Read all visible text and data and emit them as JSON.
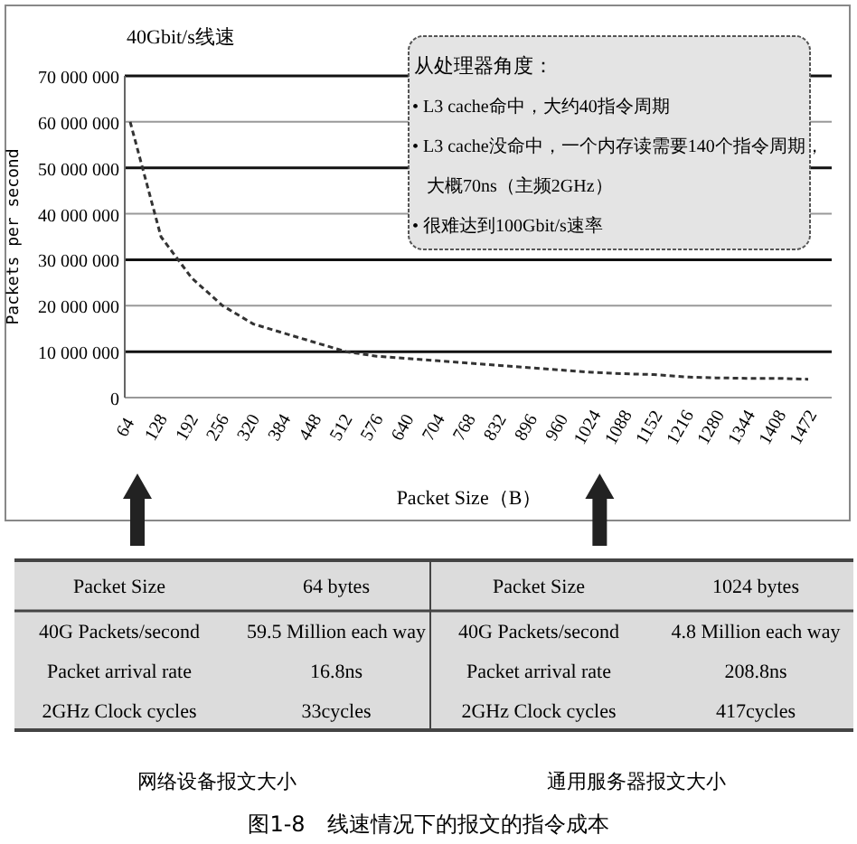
{
  "chart_data": {
    "type": "line",
    "title": "40Gbit/s线速",
    "xlabel": "Packet Size（B）",
    "ylabel": "Packets per second",
    "categories": [
      "64",
      "128",
      "192",
      "256",
      "320",
      "384",
      "448",
      "512",
      "576",
      "640",
      "704",
      "768",
      "832",
      "896",
      "960",
      "1024",
      "1088",
      "1152",
      "1216",
      "1280",
      "1344",
      "1408",
      "1472"
    ],
    "series": [
      {
        "color": "#333333",
        "values": [
          60000000,
          35000000,
          26000000,
          20000000,
          16000000,
          14000000,
          12000000,
          10000000,
          9000000,
          8500000,
          8000000,
          7500000,
          7000000,
          6500000,
          6000000,
          5500000,
          5200000,
          5000000,
          4500000,
          4300000,
          4200000,
          4200000,
          4000000
        ]
      }
    ],
    "line_style": "dashed",
    "marker": "none",
    "grid": "y",
    "ylim": [
      0,
      70000000
    ],
    "yticks": [
      {
        "value": 0,
        "label": "0"
      },
      {
        "value": 10000000,
        "label": "10 000 000"
      },
      {
        "value": 20000000,
        "label": "20 000 000"
      },
      {
        "value": 30000000,
        "label": "30 000 000"
      },
      {
        "value": 40000000,
        "label": "40 000 000"
      },
      {
        "value": 50000000,
        "label": "50 000 000"
      },
      {
        "value": 60000000,
        "label": "60 000 000"
      },
      {
        "value": 70000000,
        "label": "70 000 000"
      }
    ],
    "annotations": [
      "从处理器角度：",
      "• L3 cache命中，大约40指令周期",
      "• L3 cache没命中，一个内存读需要140个指令周期，",
      "大概70ns（主频2GHz）",
      "• 很难达到100Gbit/s速率",
      "Packet Size",
      "64 bytes",
      "40G Packets/second",
      "59.5 Million each way",
      "Packet arrival rate",
      "16.8ns",
      "2GHz Clock cycles",
      "33cycles",
      "Packet Size",
      "1024 bytes",
      "40G Packets/second",
      "4.8 Million each way",
      "Packet arrival rate",
      "208.8ns",
      "2GHz Clock cycles",
      "417cycles",
      "网络设备报文大小",
      "通用服务器报文大小",
      "图1-8　线速情况下的报文的指令成本"
    ]
  }
}
